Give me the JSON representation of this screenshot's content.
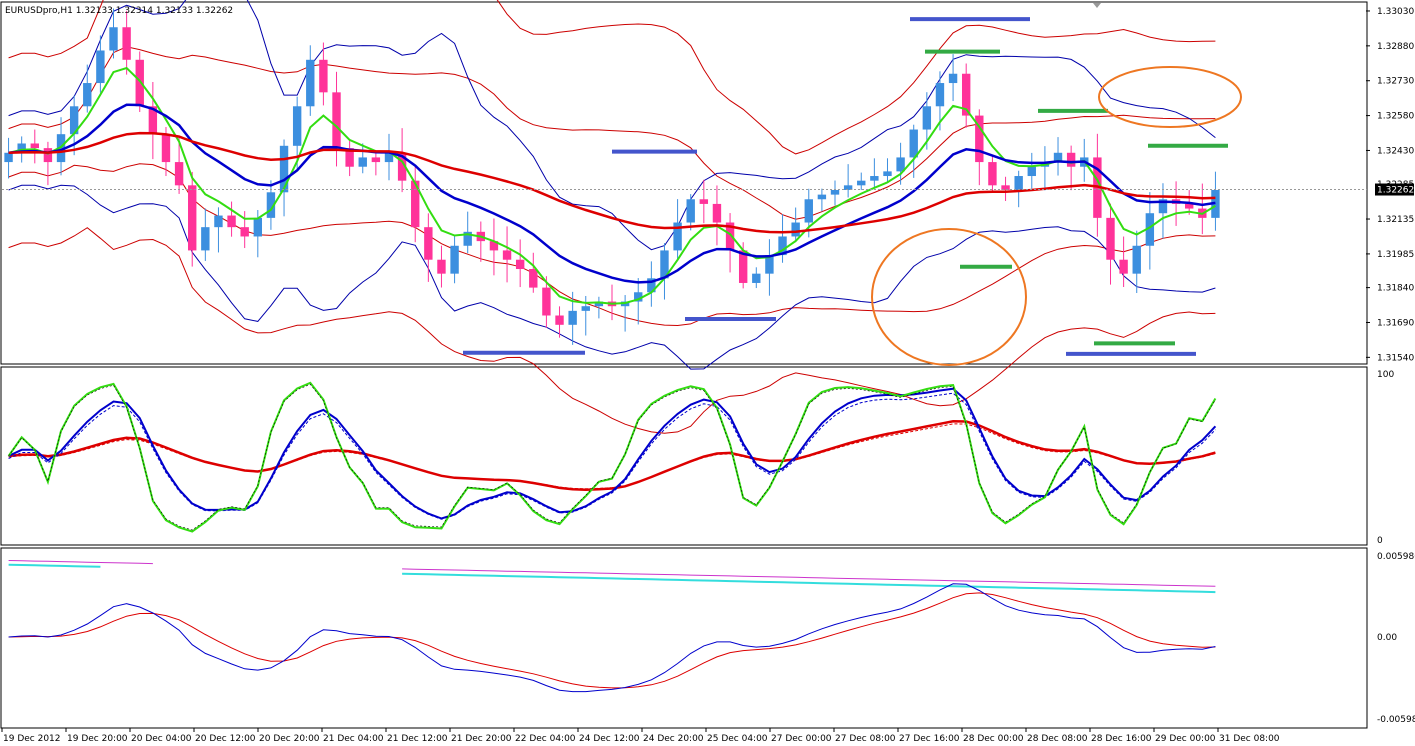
{
  "header": {
    "title": "EURUSDpro,H1 1.32133 1.32314 1.32133 1.32262"
  },
  "colors": {
    "bull_candle": "#3c8fdf",
    "bear_candle": "#ff3399",
    "bollinger_blue": "#0000aa",
    "bollinger_red": "#cc0000",
    "ma_green": "#33dd11",
    "ma_blue": "#0000cc",
    "ma_red": "#dd0000",
    "annotation_blue": "#4455cc",
    "annotation_green": "#33aa44",
    "annotation_circle": "#ee7722",
    "price_tag_bg": "#000000",
    "cyan": "#33dddd",
    "magenta": "#cc33cc"
  },
  "chart_data": [
    {
      "type": "line",
      "title": "EURUSDpro,H1 1.32133 1.32314 1.32133 1.32262",
      "price_axis_labels": [
        "1.33030",
        "1.32880",
        "1.32730",
        "1.32580",
        "1.32430",
        "1.32135",
        "1.31985",
        "1.31840",
        "1.31690",
        "1.31540"
      ],
      "current_price_label": "1.32262",
      "hidden_price_label": "1.32285",
      "ylim": [
        1.3152,
        1.3306
      ],
      "time_axis_labels": [
        "19 Dec 2012",
        "19 Dec 20:00",
        "20 Dec 04:00",
        "20 Dec 12:00",
        "20 Dec 20:00",
        "21 Dec 04:00",
        "21 Dec 12:00",
        "21 Dec 20:00",
        "22 Dec 04:00",
        "24 Dec 12:00",
        "24 Dec 20:00",
        "25 Dec 04:00",
        "27 Dec 00:00",
        "27 Dec 08:00",
        "27 Dec 16:00",
        "28 Dec 00:00",
        "28 Dec 08:00",
        "28 Dec 16:00",
        "29 Dec 00:00",
        "31 Dec 08:00"
      ],
      "close_series": [
        1.3242,
        1.3246,
        1.3244,
        1.3238,
        1.325,
        1.3262,
        1.3272,
        1.3286,
        1.3296,
        1.3282,
        1.3262,
        1.325,
        1.3238,
        1.3228,
        1.32,
        1.321,
        1.3215,
        1.321,
        1.3206,
        1.3214,
        1.3225,
        1.3245,
        1.3262,
        1.3282,
        1.3268,
        1.3244,
        1.3236,
        1.324,
        1.3238,
        1.3242,
        1.323,
        1.321,
        1.3196,
        1.319,
        1.3202,
        1.3208,
        1.3204,
        1.32,
        1.3196,
        1.3192,
        1.3184,
        1.3172,
        1.3168,
        1.3174,
        1.3176,
        1.3178,
        1.3176,
        1.3178,
        1.3182,
        1.3188,
        1.32,
        1.3212,
        1.3222,
        1.322,
        1.3212,
        1.32,
        1.3186,
        1.319,
        1.3198,
        1.3206,
        1.3212,
        1.3222,
        1.3224,
        1.3226,
        1.3228,
        1.323,
        1.3232,
        1.3234,
        1.324,
        1.3252,
        1.3262,
        1.3272,
        1.3276,
        1.3258,
        1.3238,
        1.3228,
        1.3226,
        1.3232,
        1.3236,
        1.3238,
        1.3242,
        1.3236,
        1.324,
        1.3214,
        1.3196,
        1.319,
        1.3202,
        1.3216,
        1.3222,
        1.322,
        1.3218,
        1.3214,
        1.3226
      ],
      "series": [
        {
          "name": "Bollinger outer (red)"
        },
        {
          "name": "Bollinger inner (blue)"
        },
        {
          "name": "EMA fast (green)"
        },
        {
          "name": "EMA mid (blue)"
        },
        {
          "name": "EMA slow (red)"
        }
      ]
    },
    {
      "type": "line",
      "y_axis_labels": [
        "100",
        "0"
      ],
      "ylim": [
        0,
        100
      ],
      "series": [
        {
          "name": "Stochastic %K (green)"
        },
        {
          "name": "Stochastic %D (blue)"
        },
        {
          "name": "Slow average (red)"
        }
      ]
    },
    {
      "type": "line",
      "y_axis_labels": [
        "0.005986",
        "0.00",
        "-0.005986"
      ],
      "ylim": [
        -0.005986,
        0.005986
      ],
      "series": [
        {
          "name": "MACD (blue)"
        },
        {
          "name": "Signal (red)"
        },
        {
          "name": "Upper (cyan)"
        },
        {
          "name": "Upper (magenta)"
        }
      ]
    }
  ]
}
